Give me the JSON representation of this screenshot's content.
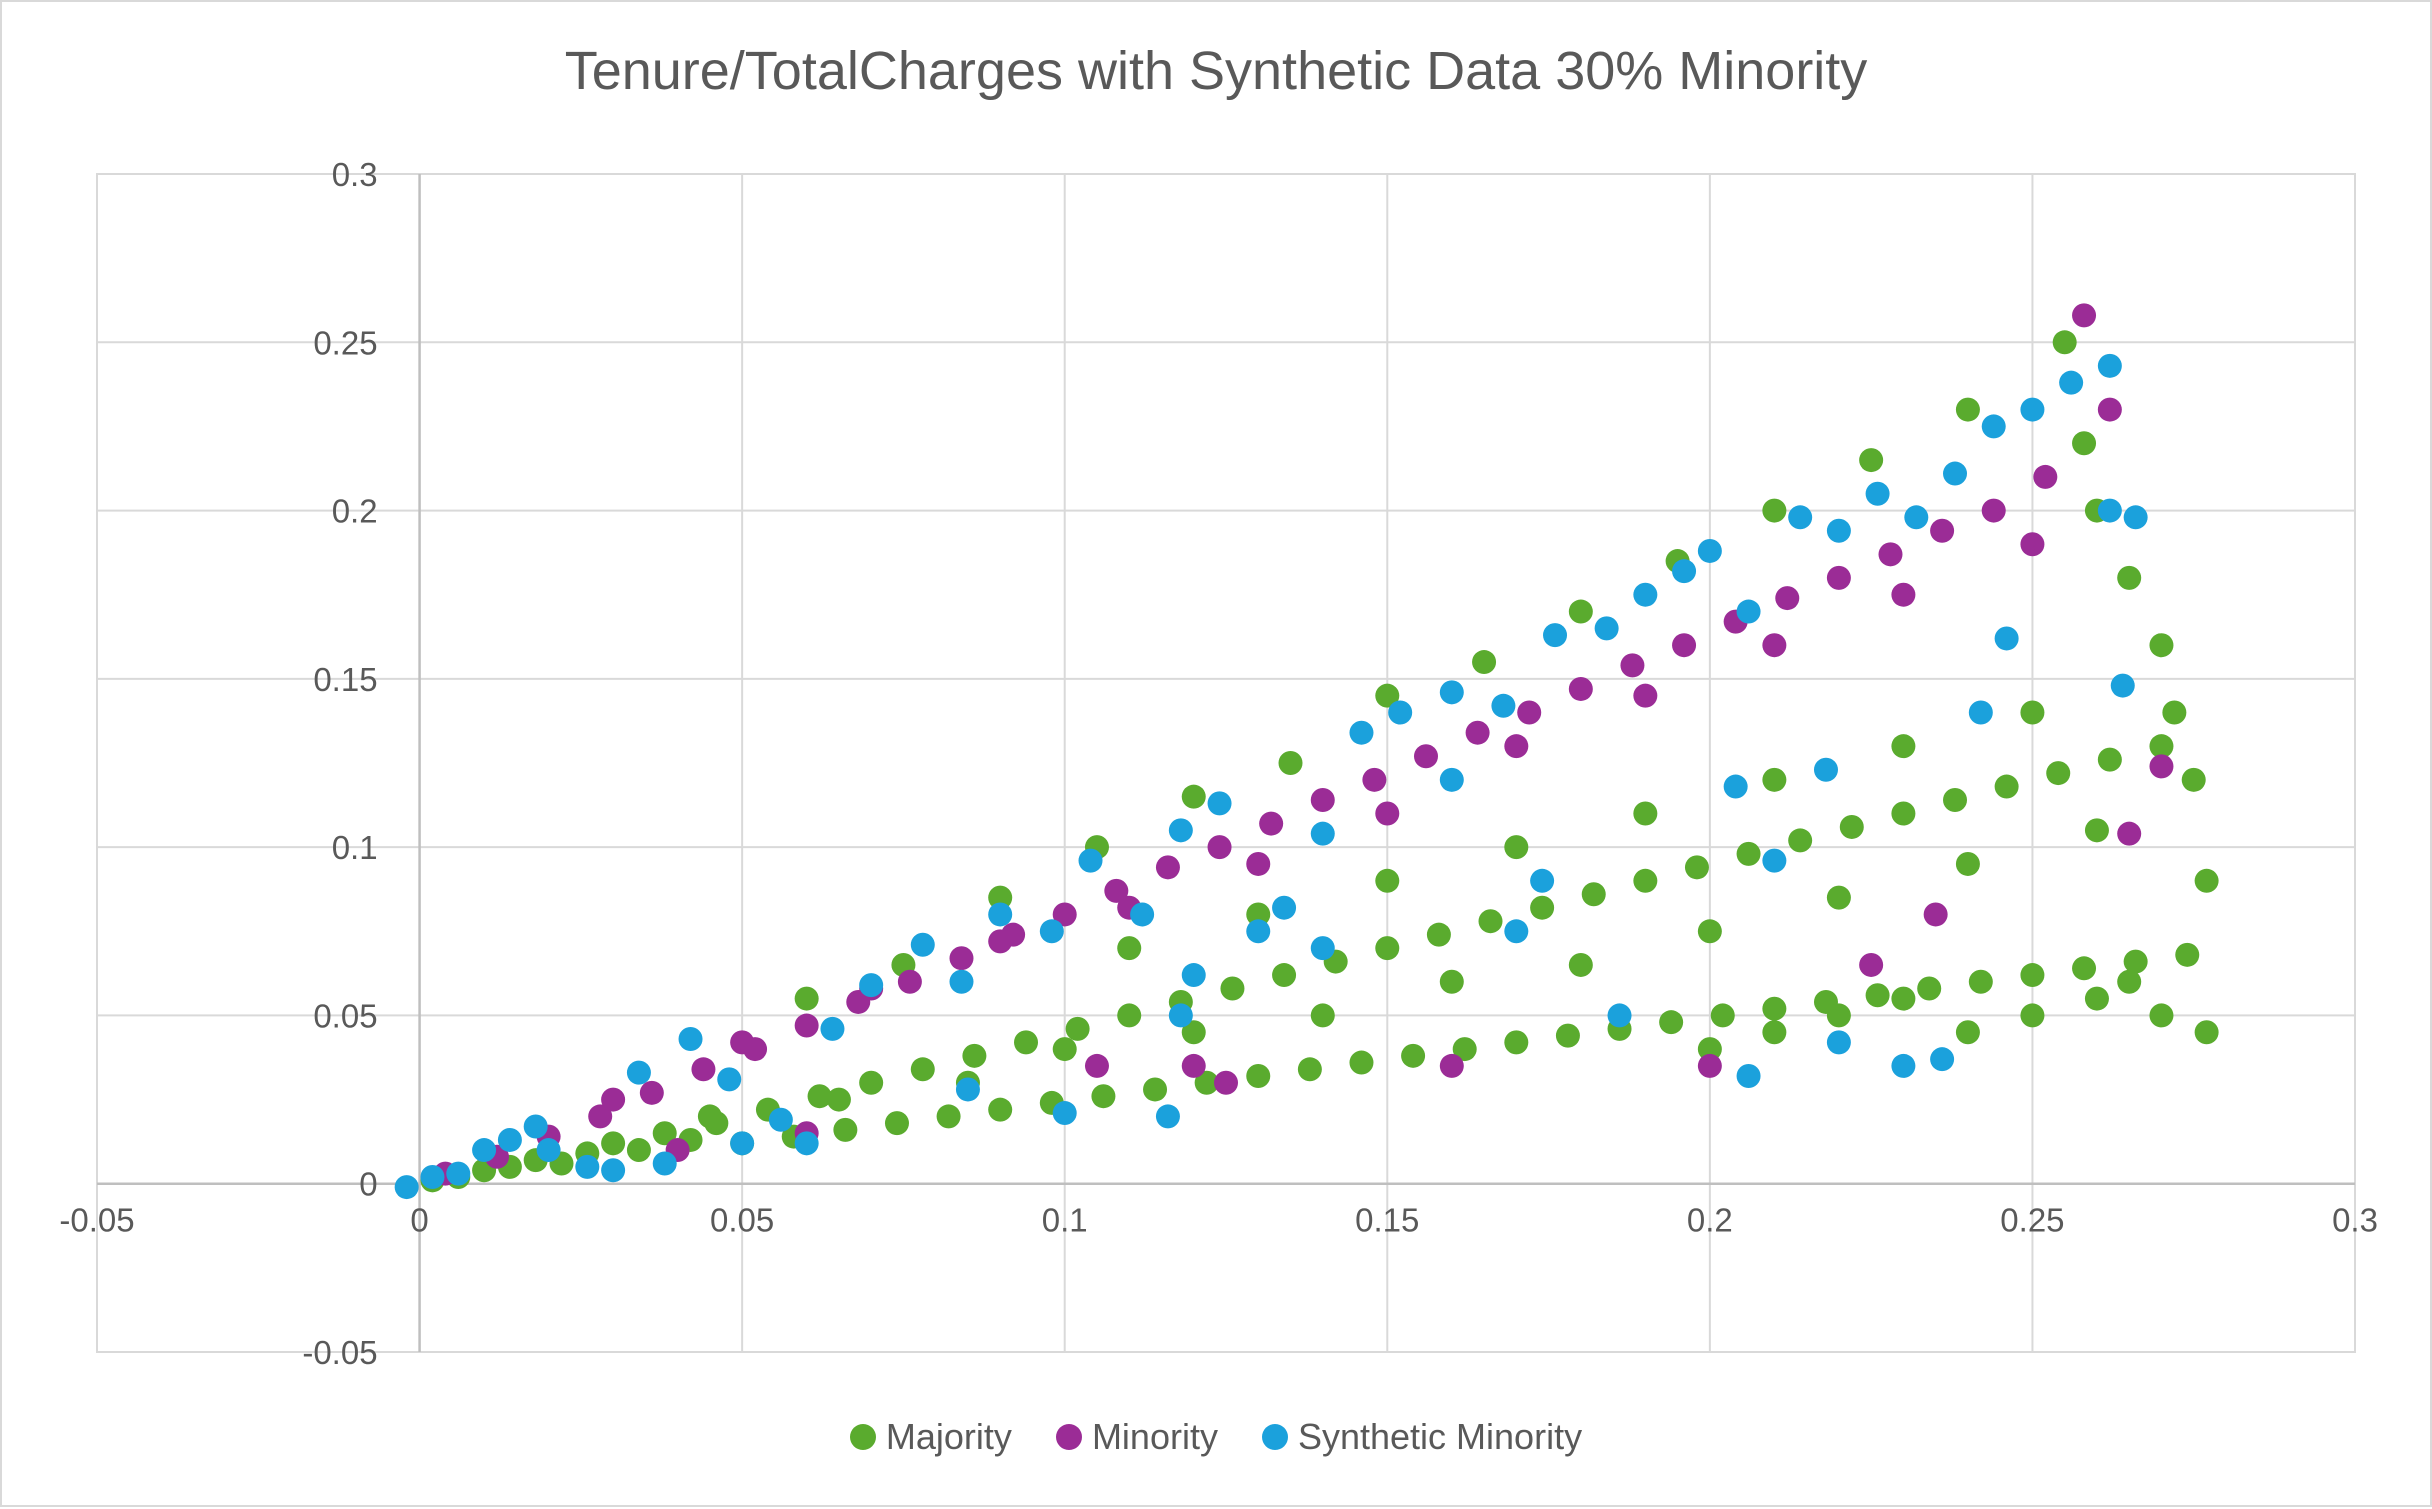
{
  "chart_data": {
    "type": "scatter",
    "title": "Tenure/TotalCharges with Synthetic Data 30% Minority",
    "xlabel": "",
    "ylabel": "",
    "xlim": [
      -0.05,
      0.3
    ],
    "ylim": [
      -0.05,
      0.3
    ],
    "x_ticks": [
      -0.05,
      0,
      0.05,
      0.1,
      0.15,
      0.2,
      0.25,
      0.3
    ],
    "y_ticks": [
      -0.05,
      0,
      0.05,
      0.1,
      0.15,
      0.2,
      0.25,
      0.3
    ],
    "x_tick_labels": [
      "-0.05",
      "0",
      "0.05",
      "0.1",
      "0.15",
      "0.2",
      "0.25",
      "0.3"
    ],
    "y_tick_labels": [
      "-0.05",
      "0",
      "0.05",
      "0.1",
      "0.15",
      "0.2",
      "0.25",
      "0.3"
    ],
    "grid": true,
    "legend_position": "bottom",
    "series": [
      {
        "name": "Majority",
        "color": "#5aab2e",
        "points": [
          [
            0.002,
            0.001
          ],
          [
            0.006,
            0.002
          ],
          [
            0.01,
            0.004
          ],
          [
            0.014,
            0.005
          ],
          [
            0.018,
            0.007
          ],
          [
            0.022,
            0.006
          ],
          [
            0.026,
            0.009
          ],
          [
            0.03,
            0.012
          ],
          [
            0.034,
            0.01
          ],
          [
            0.038,
            0.015
          ],
          [
            0.042,
            0.013
          ],
          [
            0.046,
            0.018
          ],
          [
            0.05,
            0.012
          ],
          [
            0.054,
            0.022
          ],
          [
            0.058,
            0.014
          ],
          [
            0.062,
            0.026
          ],
          [
            0.066,
            0.016
          ],
          [
            0.07,
            0.03
          ],
          [
            0.074,
            0.018
          ],
          [
            0.078,
            0.034
          ],
          [
            0.082,
            0.02
          ],
          [
            0.086,
            0.038
          ],
          [
            0.09,
            0.022
          ],
          [
            0.094,
            0.042
          ],
          [
            0.098,
            0.024
          ],
          [
            0.102,
            0.046
          ],
          [
            0.106,
            0.026
          ],
          [
            0.11,
            0.05
          ],
          [
            0.114,
            0.028
          ],
          [
            0.118,
            0.054
          ],
          [
            0.122,
            0.03
          ],
          [
            0.126,
            0.058
          ],
          [
            0.13,
            0.032
          ],
          [
            0.134,
            0.062
          ],
          [
            0.138,
            0.034
          ],
          [
            0.142,
            0.066
          ],
          [
            0.146,
            0.036
          ],
          [
            0.15,
            0.07
          ],
          [
            0.154,
            0.038
          ],
          [
            0.158,
            0.074
          ],
          [
            0.162,
            0.04
          ],
          [
            0.166,
            0.078
          ],
          [
            0.17,
            0.042
          ],
          [
            0.174,
            0.082
          ],
          [
            0.178,
            0.044
          ],
          [
            0.182,
            0.086
          ],
          [
            0.186,
            0.046
          ],
          [
            0.19,
            0.09
          ],
          [
            0.194,
            0.048
          ],
          [
            0.198,
            0.094
          ],
          [
            0.202,
            0.05
          ],
          [
            0.206,
            0.098
          ],
          [
            0.21,
            0.052
          ],
          [
            0.214,
            0.102
          ],
          [
            0.218,
            0.054
          ],
          [
            0.222,
            0.106
          ],
          [
            0.226,
            0.056
          ],
          [
            0.23,
            0.11
          ],
          [
            0.234,
            0.058
          ],
          [
            0.238,
            0.114
          ],
          [
            0.242,
            0.06
          ],
          [
            0.246,
            0.118
          ],
          [
            0.25,
            0.062
          ],
          [
            0.254,
            0.122
          ],
          [
            0.258,
            0.064
          ],
          [
            0.262,
            0.126
          ],
          [
            0.266,
            0.066
          ],
          [
            0.27,
            0.13
          ],
          [
            0.274,
            0.068
          ],
          [
            0.277,
            0.09
          ],
          [
            0.06,
            0.055
          ],
          [
            0.075,
            0.065
          ],
          [
            0.09,
            0.085
          ],
          [
            0.105,
            0.1
          ],
          [
            0.12,
            0.115
          ],
          [
            0.135,
            0.125
          ],
          [
            0.15,
            0.145
          ],
          [
            0.165,
            0.155
          ],
          [
            0.18,
            0.17
          ],
          [
            0.195,
            0.185
          ],
          [
            0.21,
            0.2
          ],
          [
            0.225,
            0.215
          ],
          [
            0.24,
            0.23
          ],
          [
            0.255,
            0.25
          ],
          [
            0.26,
            0.2
          ],
          [
            0.265,
            0.18
          ],
          [
            0.27,
            0.16
          ],
          [
            0.272,
            0.14
          ],
          [
            0.275,
            0.12
          ],
          [
            0.258,
            0.22
          ],
          [
            0.2,
            0.04
          ],
          [
            0.21,
            0.045
          ],
          [
            0.22,
            0.05
          ],
          [
            0.23,
            0.055
          ],
          [
            0.24,
            0.045
          ],
          [
            0.25,
            0.05
          ],
          [
            0.26,
            0.055
          ],
          [
            0.27,
            0.05
          ],
          [
            0.277,
            0.045
          ],
          [
            0.265,
            0.06
          ],
          [
            0.11,
            0.07
          ],
          [
            0.13,
            0.08
          ],
          [
            0.15,
            0.09
          ],
          [
            0.17,
            0.1
          ],
          [
            0.19,
            0.11
          ],
          [
            0.21,
            0.12
          ],
          [
            0.23,
            0.13
          ],
          [
            0.25,
            0.14
          ],
          [
            0.14,
            0.05
          ],
          [
            0.16,
            0.06
          ],
          [
            0.18,
            0.065
          ],
          [
            0.2,
            0.075
          ],
          [
            0.22,
            0.085
          ],
          [
            0.24,
            0.095
          ],
          [
            0.26,
            0.105
          ],
          [
            0.1,
            0.04
          ],
          [
            0.12,
            0.045
          ],
          [
            0.085,
            0.03
          ],
          [
            0.065,
            0.025
          ],
          [
            0.045,
            0.02
          ]
        ]
      },
      {
        "name": "Minority",
        "color": "#9b2c96",
        "points": [
          [
            0.004,
            0.003
          ],
          [
            0.012,
            0.008
          ],
          [
            0.02,
            0.014
          ],
          [
            0.028,
            0.02
          ],
          [
            0.036,
            0.027
          ],
          [
            0.044,
            0.034
          ],
          [
            0.052,
            0.04
          ],
          [
            0.06,
            0.047
          ],
          [
            0.068,
            0.054
          ],
          [
            0.076,
            0.06
          ],
          [
            0.084,
            0.067
          ],
          [
            0.092,
            0.074
          ],
          [
            0.1,
            0.08
          ],
          [
            0.108,
            0.087
          ],
          [
            0.116,
            0.094
          ],
          [
            0.124,
            0.1
          ],
          [
            0.132,
            0.107
          ],
          [
            0.14,
            0.114
          ],
          [
            0.148,
            0.12
          ],
          [
            0.156,
            0.127
          ],
          [
            0.164,
            0.134
          ],
          [
            0.172,
            0.14
          ],
          [
            0.18,
            0.147
          ],
          [
            0.188,
            0.154
          ],
          [
            0.196,
            0.16
          ],
          [
            0.204,
            0.167
          ],
          [
            0.212,
            0.174
          ],
          [
            0.22,
            0.18
          ],
          [
            0.228,
            0.187
          ],
          [
            0.236,
            0.194
          ],
          [
            0.244,
            0.2
          ],
          [
            0.252,
            0.21
          ],
          [
            0.258,
            0.258
          ],
          [
            0.262,
            0.23
          ],
          [
            0.27,
            0.124
          ],
          [
            0.265,
            0.104
          ],
          [
            0.03,
            0.025
          ],
          [
            0.05,
            0.042
          ],
          [
            0.07,
            0.058
          ],
          [
            0.09,
            0.072
          ],
          [
            0.11,
            0.082
          ],
          [
            0.13,
            0.095
          ],
          [
            0.15,
            0.11
          ],
          [
            0.17,
            0.13
          ],
          [
            0.19,
            0.145
          ],
          [
            0.21,
            0.16
          ],
          [
            0.23,
            0.175
          ],
          [
            0.25,
            0.19
          ],
          [
            0.235,
            0.08
          ],
          [
            0.225,
            0.065
          ],
          [
            0.12,
            0.035
          ],
          [
            0.125,
            0.03
          ],
          [
            0.16,
            0.035
          ],
          [
            0.2,
            0.035
          ],
          [
            0.105,
            0.035
          ],
          [
            0.06,
            0.015
          ],
          [
            0.04,
            0.01
          ]
        ]
      },
      {
        "name": "Synthetic Minority",
        "color": "#1ba1dc",
        "points": [
          [
            -0.002,
            -0.001
          ],
          [
            0.002,
            0.002
          ],
          [
            0.006,
            0.003
          ],
          [
            0.01,
            0.01
          ],
          [
            0.014,
            0.013
          ],
          [
            0.02,
            0.01
          ],
          [
            0.026,
            0.005
          ],
          [
            0.034,
            0.033
          ],
          [
            0.042,
            0.043
          ],
          [
            0.048,
            0.031
          ],
          [
            0.056,
            0.019
          ],
          [
            0.064,
            0.046
          ],
          [
            0.07,
            0.059
          ],
          [
            0.078,
            0.071
          ],
          [
            0.084,
            0.06
          ],
          [
            0.09,
            0.08
          ],
          [
            0.098,
            0.075
          ],
          [
            0.104,
            0.096
          ],
          [
            0.112,
            0.08
          ],
          [
            0.118,
            0.105
          ],
          [
            0.124,
            0.113
          ],
          [
            0.134,
            0.082
          ],
          [
            0.14,
            0.104
          ],
          [
            0.146,
            0.134
          ],
          [
            0.152,
            0.14
          ],
          [
            0.16,
            0.146
          ],
          [
            0.168,
            0.142
          ],
          [
            0.176,
            0.163
          ],
          [
            0.184,
            0.165
          ],
          [
            0.19,
            0.175
          ],
          [
            0.196,
            0.182
          ],
          [
            0.2,
            0.188
          ],
          [
            0.206,
            0.17
          ],
          [
            0.214,
            0.198
          ],
          [
            0.22,
            0.194
          ],
          [
            0.226,
            0.205
          ],
          [
            0.232,
            0.198
          ],
          [
            0.238,
            0.211
          ],
          [
            0.244,
            0.225
          ],
          [
            0.25,
            0.23
          ],
          [
            0.256,
            0.238
          ],
          [
            0.262,
            0.243
          ],
          [
            0.266,
            0.198
          ],
          [
            0.262,
            0.2
          ],
          [
            0.246,
            0.162
          ],
          [
            0.242,
            0.14
          ],
          [
            0.264,
            0.148
          ],
          [
            0.218,
            0.123
          ],
          [
            0.21,
            0.096
          ],
          [
            0.204,
            0.118
          ],
          [
            0.186,
            0.05
          ],
          [
            0.206,
            0.032
          ],
          [
            0.22,
            0.042
          ],
          [
            0.23,
            0.035
          ],
          [
            0.236,
            0.037
          ],
          [
            0.12,
            0.062
          ],
          [
            0.118,
            0.05
          ],
          [
            0.116,
            0.02
          ],
          [
            0.1,
            0.021
          ],
          [
            0.085,
            0.028
          ],
          [
            0.06,
            0.012
          ],
          [
            0.05,
            0.012
          ],
          [
            0.038,
            0.006
          ],
          [
            0.03,
            0.004
          ],
          [
            0.018,
            0.017
          ],
          [
            0.174,
            0.09
          ],
          [
            0.17,
            0.075
          ],
          [
            0.16,
            0.12
          ],
          [
            0.14,
            0.07
          ],
          [
            0.13,
            0.075
          ]
        ]
      }
    ]
  }
}
